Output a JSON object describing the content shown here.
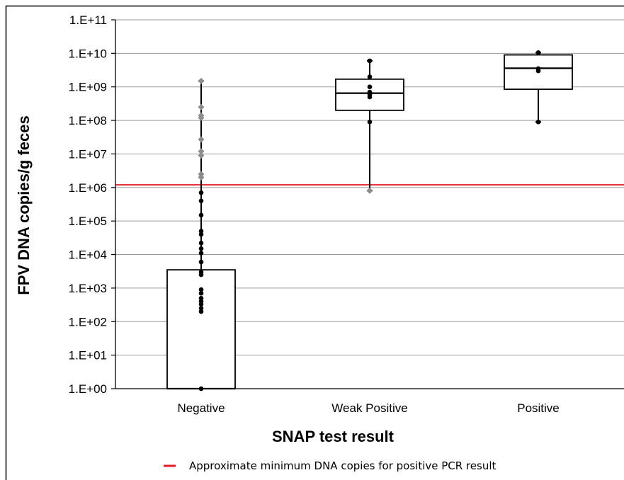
{
  "chart_data": {
    "type": "box",
    "xlabel": "SNAP test result",
    "ylabel": "FPV DNA copies/g feces",
    "y_scale": "log10",
    "ylim": [
      1,
      100000000000
    ],
    "y_tick_labels": [
      "1.E+00",
      "1.E+01",
      "1.E+02",
      "1.E+03",
      "1.E+04",
      "1.E+05",
      "1.E+06",
      "1.E+07",
      "1.E+08",
      "1.E+09",
      "1.E+10",
      "1.E+11"
    ],
    "grid": "horizontal",
    "categories": [
      "Negative",
      "Weak Positive",
      "Positive"
    ],
    "boxes": [
      {
        "category": "Negative",
        "q1": 1,
        "median": 1,
        "q3": 3500,
        "whisker_low": 1,
        "whisker_high": 1500000000,
        "points": [
          1,
          200,
          250,
          330,
          400,
          500,
          700,
          900,
          2500,
          3000,
          6000,
          11000,
          15000,
          22000,
          40000,
          50000,
          150000,
          400000,
          700000
        ],
        "outliers": [
          2000000,
          2500000,
          9000000,
          12000000,
          27000000,
          120000000,
          140000000,
          250000000,
          1500000000
        ]
      },
      {
        "category": "Weak Positive",
        "q1": 200000000,
        "median": 650000000,
        "q3": 1700000000,
        "whisker_low": 800000,
        "whisker_high": 6000000000,
        "points": [
          90000000,
          500000000,
          600000000,
          700000000,
          1000000000,
          2000000000,
          6000000000
        ],
        "outliers": [
          800000
        ]
      },
      {
        "category": "Positive",
        "q1": 850000000,
        "median": 3600000000,
        "q3": 9000000000,
        "whisker_low": 90000000,
        "whisker_high": 10500000000,
        "points": [
          90000000,
          3000000000,
          3500000000,
          10500000000
        ],
        "outliers": []
      }
    ],
    "reference_line": {
      "y": 1200000,
      "color": "#e31b23",
      "label": "Approximate minimum DNA copies for positive PCR result"
    },
    "colors": {
      "box": "#000000",
      "point": "#000000",
      "outlier": "#8c8c8c",
      "grid": "#9a9a9a"
    },
    "legend_position": "bottom"
  }
}
